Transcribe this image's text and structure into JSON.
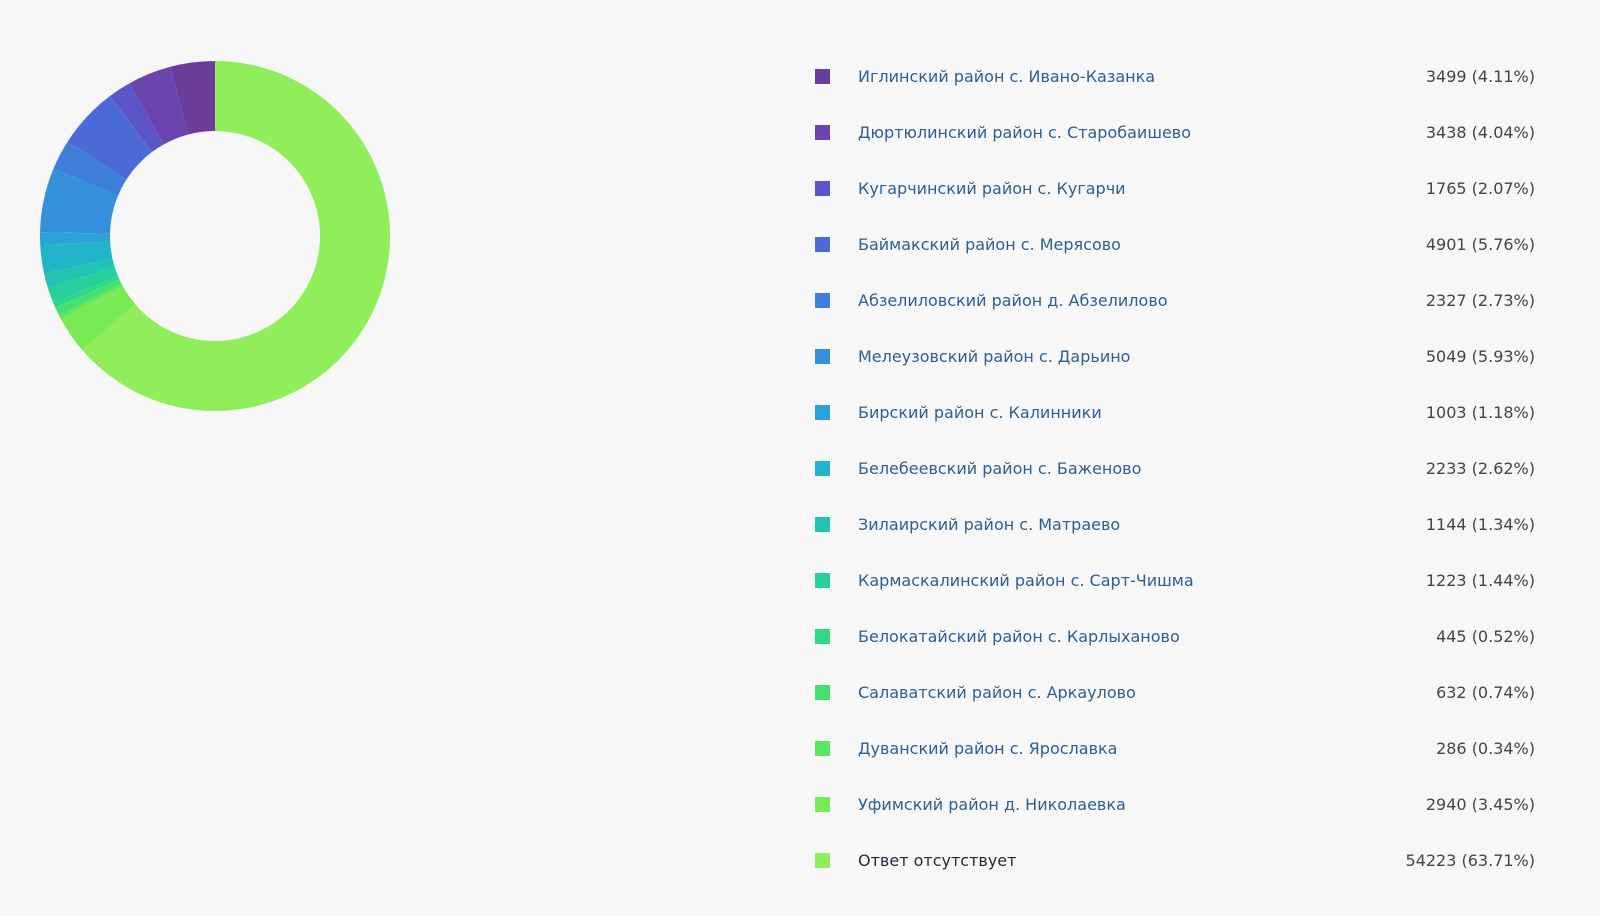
{
  "chart_data": {
    "type": "donut",
    "categories": [
      "Иглинский район с. Ивано-Казанка",
      "Дюртюлинский район с. Старобаишево",
      "Кугарчинский район с. Кугарчи",
      "Баймакский район с. Мерясово",
      "Абзелиловский район д. Абзелилово",
      "Мелеузовский район с. Дарьино",
      "Бирский район с. Калинники",
      "Белебеевский район с. Баженово",
      "Зилаирский район с. Матраево",
      "Кармаскалинский район с. Сарт-Чишма",
      "Белокатайский район с. Карлыханово",
      "Салаватский район с. Аркаулово",
      "Дуванский район с. Ярославка",
      "Уфимский район д. Николаевка",
      "Ответ отсутствует"
    ],
    "values": [
      3499,
      3438,
      1765,
      4901,
      2327,
      5049,
      1003,
      2233,
      1144,
      1223,
      445,
      632,
      286,
      2940,
      54223
    ],
    "value_labels": [
      "3499 (4.11%)",
      "3438 (4.04%)",
      "1765 (2.07%)",
      "4901 (5.76%)",
      "2327 (2.73%)",
      "5049 (5.93%)",
      "1003 (1.18%)",
      "2233 (2.62%)",
      "1144 (1.34%)",
      "1223 (1.44%)",
      "445 (0.52%)",
      "632 (0.74%)",
      "286 (0.34%)",
      "2940 (3.45%)",
      "54223 (63.71%)"
    ],
    "colors": [
      "#6a3d9a",
      "#6a45b0",
      "#5b55c8",
      "#4c6ad8",
      "#3f7fdc",
      "#3590dc",
      "#2aa2d6",
      "#22b4c8",
      "#20c4b0",
      "#25d09a",
      "#2fd888",
      "#45e070",
      "#5ae65e",
      "#78ea55",
      "#90ee5a"
    ]
  }
}
